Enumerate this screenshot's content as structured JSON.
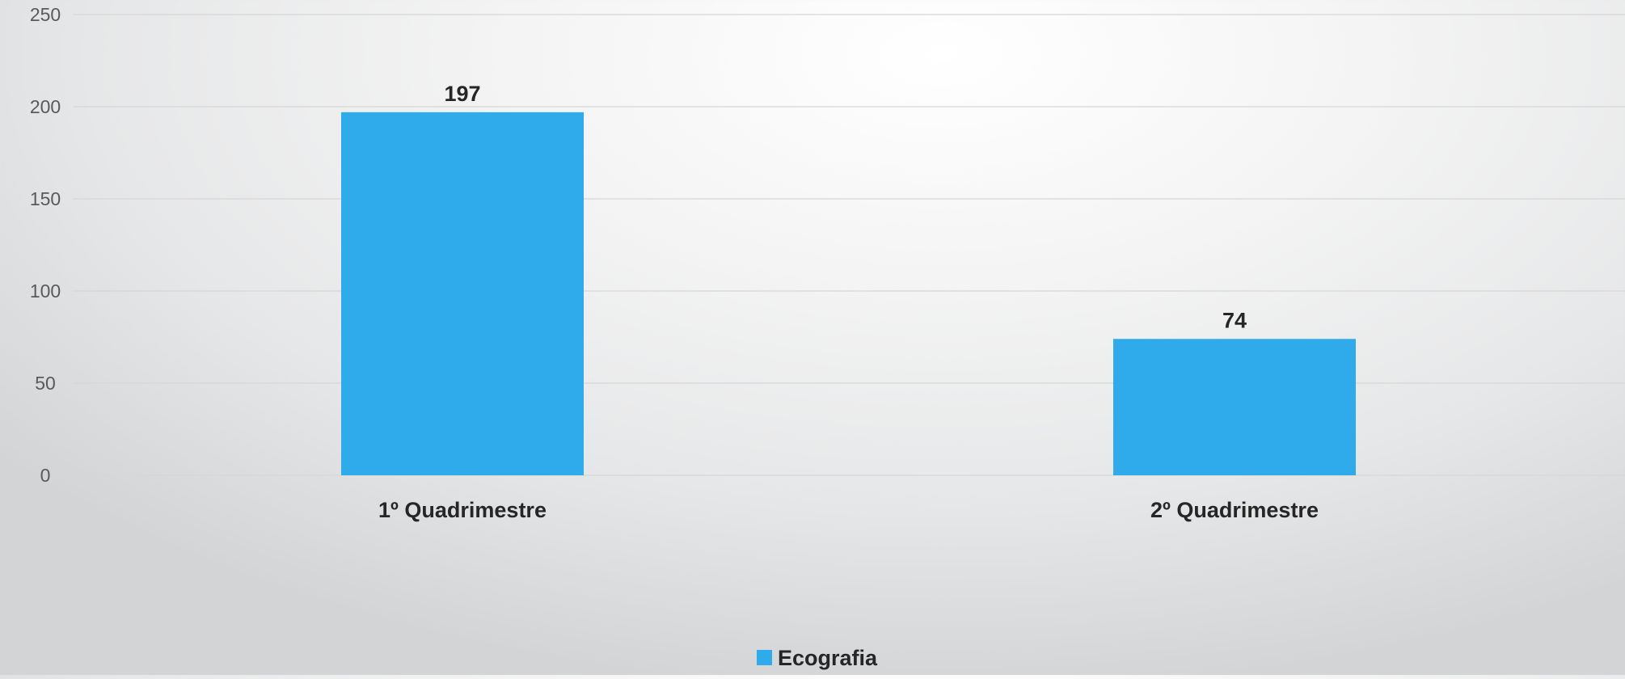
{
  "chart_data": {
    "type": "bar",
    "categories": [
      "1º Quadrimestre",
      "2º Quadrimestre"
    ],
    "series": [
      {
        "name": "Ecografia",
        "values": [
          197,
          74
        ],
        "color": "#2fabeb"
      }
    ],
    "data_labels": [
      "197",
      "74"
    ],
    "yticks": [
      "0",
      "50",
      "100",
      "150",
      "200",
      "250"
    ],
    "ylim": [
      0,
      250
    ],
    "grid": true,
    "legend": "bottom-center"
  }
}
